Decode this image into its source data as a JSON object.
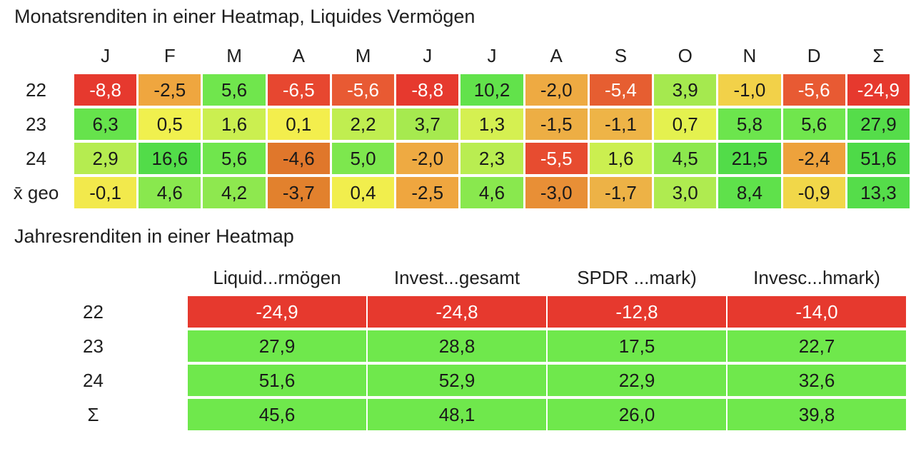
{
  "page": {
    "background": "#ffffff",
    "text_color": "#1f1f1f"
  },
  "monthly": {
    "title": "Monatsrenditen in einer Heatmap, Liquides Vermögen",
    "columns": [
      "J",
      "F",
      "M",
      "A",
      "M",
      "J",
      "J",
      "A",
      "S",
      "O",
      "N",
      "D",
      "Σ"
    ],
    "rows": [
      {
        "label": "22",
        "cells": [
          {
            "t": "-8,8",
            "bg": "#e6392e",
            "fg": "#ffffff"
          },
          {
            "t": "-2,5",
            "bg": "#efa63f",
            "fg": "#1a1a1a"
          },
          {
            "t": "5,6",
            "bg": "#70e64d",
            "fg": "#1a1a1a"
          },
          {
            "t": "-6,5",
            "bg": "#e74730",
            "fg": "#ffffff"
          },
          {
            "t": "-5,6",
            "bg": "#e85a33",
            "fg": "#ffffff"
          },
          {
            "t": "-8,8",
            "bg": "#e6392e",
            "fg": "#ffffff"
          },
          {
            "t": "10,2",
            "bg": "#62e24b",
            "fg": "#1a1a1a"
          },
          {
            "t": "-2,0",
            "bg": "#eeaa42",
            "fg": "#1a1a1a"
          },
          {
            "t": "-5,4",
            "bg": "#e65e31",
            "fg": "#ffffff"
          },
          {
            "t": "3,9",
            "bg": "#a5e94f",
            "fg": "#1a1a1a"
          },
          {
            "t": "-1,0",
            "bg": "#f2d149",
            "fg": "#1a1a1a"
          },
          {
            "t": "-5,6",
            "bg": "#e85a33",
            "fg": "#ffffff"
          },
          {
            "t": "-24,9",
            "bg": "#e6392e",
            "fg": "#ffffff"
          }
        ]
      },
      {
        "label": "23",
        "cells": [
          {
            "t": "6,3",
            "bg": "#66e34c",
            "fg": "#1a1a1a"
          },
          {
            "t": "0,5",
            "bg": "#f0f04e",
            "fg": "#1a1a1a"
          },
          {
            "t": "1,6",
            "bg": "#cbef50",
            "fg": "#1a1a1a"
          },
          {
            "t": "0,1",
            "bg": "#f3ee4d",
            "fg": "#1a1a1a"
          },
          {
            "t": "2,2",
            "bg": "#c0ee50",
            "fg": "#1a1a1a"
          },
          {
            "t": "3,7",
            "bg": "#a6ea4f",
            "fg": "#1a1a1a"
          },
          {
            "t": "1,3",
            "bg": "#d5f051",
            "fg": "#1a1a1a"
          },
          {
            "t": "-1,5",
            "bg": "#edae44",
            "fg": "#1a1a1a"
          },
          {
            "t": "-1,1",
            "bg": "#eeb447",
            "fg": "#1a1a1a"
          },
          {
            "t": "0,7",
            "bg": "#e4f14f",
            "fg": "#1a1a1a"
          },
          {
            "t": "5,8",
            "bg": "#6ce54d",
            "fg": "#1a1a1a"
          },
          {
            "t": "5,6",
            "bg": "#70e64d",
            "fg": "#1a1a1a"
          },
          {
            "t": "27,9",
            "bg": "#55dd4a",
            "fg": "#1a1a1a"
          }
        ]
      },
      {
        "label": "24",
        "cells": [
          {
            "t": "2,9",
            "bg": "#b5ec50",
            "fg": "#1a1a1a"
          },
          {
            "t": "16,6",
            "bg": "#52dc49",
            "fg": "#1a1a1a"
          },
          {
            "t": "5,6",
            "bg": "#70e64d",
            "fg": "#1a1a1a"
          },
          {
            "t": "-4,6",
            "bg": "#e0772b",
            "fg": "#1a1a1a"
          },
          {
            "t": "5,0",
            "bg": "#7de74e",
            "fg": "#1a1a1a"
          },
          {
            "t": "-2,0",
            "bg": "#eeaa42",
            "fg": "#1a1a1a"
          },
          {
            "t": "2,3",
            "bg": "#b9ed51",
            "fg": "#1a1a1a"
          },
          {
            "t": "-5,5",
            "bg": "#e74c30",
            "fg": "#ffffff"
          },
          {
            "t": "1,6",
            "bg": "#cbef50",
            "fg": "#1a1a1a"
          },
          {
            "t": "4,5",
            "bg": "#8ce84e",
            "fg": "#1a1a1a"
          },
          {
            "t": "21,5",
            "bg": "#52dc49",
            "fg": "#1a1a1a"
          },
          {
            "t": "-2,4",
            "bg": "#eda23c",
            "fg": "#1a1a1a"
          },
          {
            "t": "51,6",
            "bg": "#4eda48",
            "fg": "#1a1a1a"
          }
        ]
      },
      {
        "label": "x̄ geo",
        "cells": [
          {
            "t": "-0,1",
            "bg": "#f2e94c",
            "fg": "#1a1a1a"
          },
          {
            "t": "4,6",
            "bg": "#89e84e",
            "fg": "#1a1a1a"
          },
          {
            "t": "4,2",
            "bg": "#8ee84f",
            "fg": "#1a1a1a"
          },
          {
            "t": "-3,7",
            "bg": "#e2812d",
            "fg": "#1a1a1a"
          },
          {
            "t": "0,4",
            "bg": "#f1ee4d",
            "fg": "#1a1a1a"
          },
          {
            "t": "-2,5",
            "bg": "#efa63f",
            "fg": "#1a1a1a"
          },
          {
            "t": "4,6",
            "bg": "#89e84e",
            "fg": "#1a1a1a"
          },
          {
            "t": "-3,0",
            "bg": "#e88f36",
            "fg": "#1a1a1a"
          },
          {
            "t": "-1,7",
            "bg": "#edb246",
            "fg": "#1a1a1a"
          },
          {
            "t": "3,0",
            "bg": "#afeb50",
            "fg": "#1a1a1a"
          },
          {
            "t": "8,4",
            "bg": "#5fe14b",
            "fg": "#1a1a1a"
          },
          {
            "t": "-0,9",
            "bg": "#f1d749",
            "fg": "#1a1a1a"
          },
          {
            "t": "13,3",
            "bg": "#55dd4a",
            "fg": "#1a1a1a"
          }
        ]
      }
    ]
  },
  "yearly": {
    "title": "Jahresrenditen in einer Heatmap",
    "columns": [
      "Liquid...rmögen",
      "Invest...gesamt",
      "SPDR ...mark)",
      "Invesc...hmark)"
    ],
    "rows": [
      {
        "label": "22",
        "cells": [
          {
            "t": "-24,9",
            "bg": "#e6392e",
            "fg": "#ffffff"
          },
          {
            "t": "-24,8",
            "bg": "#e6392e",
            "fg": "#ffffff"
          },
          {
            "t": "-12,8",
            "bg": "#e6392e",
            "fg": "#ffffff"
          },
          {
            "t": "-14,0",
            "bg": "#e6392e",
            "fg": "#ffffff"
          }
        ]
      },
      {
        "label": "23",
        "cells": [
          {
            "t": "27,9",
            "bg": "#6fe84c",
            "fg": "#1a1a1a"
          },
          {
            "t": "28,8",
            "bg": "#6fe84c",
            "fg": "#1a1a1a"
          },
          {
            "t": "17,5",
            "bg": "#6fe84c",
            "fg": "#1a1a1a"
          },
          {
            "t": "22,7",
            "bg": "#6fe84c",
            "fg": "#1a1a1a"
          }
        ]
      },
      {
        "label": "24",
        "cells": [
          {
            "t": "51,6",
            "bg": "#6fe84c",
            "fg": "#1a1a1a"
          },
          {
            "t": "52,9",
            "bg": "#6fe84c",
            "fg": "#1a1a1a"
          },
          {
            "t": "22,9",
            "bg": "#6fe84c",
            "fg": "#1a1a1a"
          },
          {
            "t": "32,6",
            "bg": "#6fe84c",
            "fg": "#1a1a1a"
          }
        ]
      },
      {
        "label": "Σ",
        "cells": [
          {
            "t": "45,6",
            "bg": "#6fe84c",
            "fg": "#1a1a1a"
          },
          {
            "t": "48,1",
            "bg": "#6fe84c",
            "fg": "#1a1a1a"
          },
          {
            "t": "26,0",
            "bg": "#6fe84c",
            "fg": "#1a1a1a"
          },
          {
            "t": "39,8",
            "bg": "#6fe84c",
            "fg": "#1a1a1a"
          }
        ]
      }
    ]
  },
  "chart_data": [
    {
      "type": "heatmap",
      "title": "Monatsrenditen in einer Heatmap, Liquides Vermögen",
      "x_labels": [
        "J",
        "F",
        "M",
        "A",
        "M",
        "J",
        "J",
        "A",
        "S",
        "O",
        "N",
        "D",
        "Σ"
      ],
      "y_labels": [
        "22",
        "23",
        "24",
        "x̄ geo"
      ],
      "values": [
        [
          -8.8,
          -2.5,
          5.6,
          -6.5,
          -5.6,
          -8.8,
          10.2,
          -2.0,
          -5.4,
          3.9,
          -1.0,
          -5.6,
          -24.9
        ],
        [
          6.3,
          0.5,
          1.6,
          0.1,
          2.2,
          3.7,
          1.3,
          -1.5,
          -1.1,
          0.7,
          5.8,
          5.6,
          27.9
        ],
        [
          2.9,
          16.6,
          5.6,
          -4.6,
          5.0,
          -2.0,
          2.3,
          -5.5,
          1.6,
          4.5,
          21.5,
          -2.4,
          51.6
        ],
        [
          -0.1,
          4.6,
          4.2,
          -3.7,
          0.4,
          -2.5,
          4.6,
          -3.0,
          -1.7,
          3.0,
          8.4,
          -0.9,
          13.3
        ]
      ],
      "color_scale": "red (negative) → yellow (near zero) → green (positive)",
      "decimal_separator": ","
    },
    {
      "type": "heatmap",
      "title": "Jahresrenditen in einer Heatmap",
      "x_labels": [
        "Liquid...rmögen",
        "Invest...gesamt",
        "SPDR ...mark)",
        "Invesc...hmark)"
      ],
      "y_labels": [
        "22",
        "23",
        "24",
        "Σ"
      ],
      "values": [
        [
          -24.9,
          -24.8,
          -12.8,
          -14.0
        ],
        [
          27.9,
          28.8,
          17.5,
          22.7
        ],
        [
          51.6,
          52.9,
          22.9,
          32.6
        ],
        [
          45.6,
          48.1,
          26.0,
          39.8
        ]
      ],
      "color_scale": "red (negative) / green (positive)",
      "decimal_separator": ","
    }
  ]
}
